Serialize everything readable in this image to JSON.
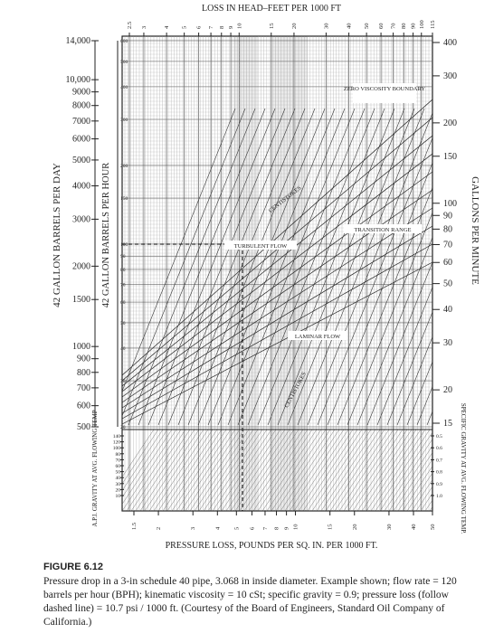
{
  "figure": {
    "top_axis": {
      "title": "LOSS IN HEAD–FEET PER 1000 FT",
      "ticks": [
        "2.5",
        "3",
        "4",
        "5",
        "6",
        "7",
        "8",
        "9",
        "10",
        "15",
        "20",
        "30",
        "40",
        "50",
        "60",
        "70",
        "80",
        "90",
        "100",
        "115"
      ]
    },
    "bottom_axis": {
      "title": "PRESSURE LOSS, POUNDS PER SQ. IN. PER 1000 FT.",
      "ticks": [
        "1.5",
        "2",
        "3",
        "4",
        "5",
        "6",
        "7",
        "8",
        "9",
        "10",
        "15",
        "20",
        "30",
        "40",
        "50"
      ]
    },
    "left_outer_axis": {
      "title": "42 GALLON BARRELS PER DAY",
      "ticks": [
        "14,000",
        "10,000",
        "9000",
        "8000",
        "7000",
        "6000",
        "5000",
        "4000",
        "3000",
        "2000",
        "1500",
        "1000",
        "900",
        "800",
        "700",
        "600",
        "500"
      ]
    },
    "left_inner_axis": {
      "title": "42 GALLON BARRELS PER HOUR",
      "ticks": [
        "600",
        "500",
        "400",
        "300",
        "200",
        "150",
        "100",
        "90",
        "80",
        "70",
        "60",
        "50",
        "40",
        "30",
        "20"
      ]
    },
    "right_axis": {
      "title": "GALLONS PER MINUTE",
      "ticks": [
        "400",
        "300",
        "200",
        "150",
        "100",
        "90",
        "80",
        "70",
        "60",
        "50",
        "40",
        "30",
        "20",
        "15"
      ]
    },
    "api_axis": {
      "title": "A.P.I. GRAVITY AT AVG. FLOWING TEMP",
      "ticks": [
        "140",
        "120",
        "100",
        "80",
        "70",
        "60",
        "50",
        "40",
        "30",
        "20",
        "10"
      ]
    },
    "sg_axis": {
      "title": "SPECIFIC GRAVITY AT AVG. FLOWING TEMP.",
      "ticks": [
        "0.5",
        "0.6",
        "0.7",
        "0.8",
        "0.9",
        "1.0"
      ]
    },
    "annotations": [
      "ZERO VISCOSITY BOUNDARY",
      "TRANSITION RANGE",
      "TURBULENT FLOW",
      "LAMINAR FLOW",
      "CENTISTOKES",
      "CENTISTOKES"
    ],
    "caption": {
      "label": "FIGURE 6.12",
      "text": "Pressure drop in a 3-in schedule 40 pipe, 3.068 in inside diameter. Example shown; flow rate = 120 barrels per hour (BPH); kinematic viscosity = 10 cSt; specific gravity = 0.9; pressure loss (follow dashed line) = 10.7 psi / 1000 ft. (Courtesy of the Board of Engineers, Standard Oil Company of California.)"
    }
  }
}
